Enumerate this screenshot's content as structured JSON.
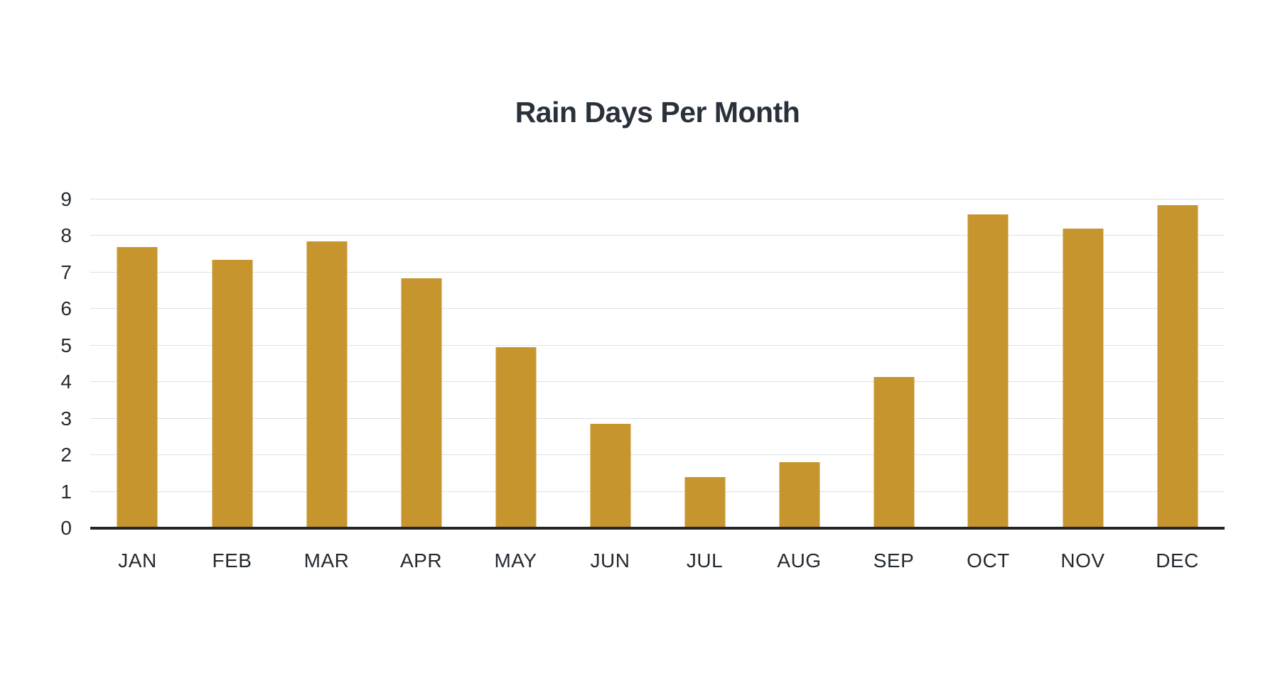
{
  "title": "Rain Days Per Month",
  "colors": {
    "background": "#ffffff",
    "bar": "#c6952e",
    "gridline": "#dce1e4",
    "baseline": "#1f262c",
    "title_text": "#2a313a",
    "axis_text": "#232a30"
  },
  "chart_data": {
    "type": "bar",
    "title": "Rain Days Per Month",
    "categories": [
      "JAN",
      "FEB",
      "MAR",
      "APR",
      "MAY",
      "JUN",
      "JUL",
      "AUG",
      "SEP",
      "OCT",
      "NOV",
      "DEC"
    ],
    "values": [
      7.7,
      7.35,
      7.85,
      6.85,
      4.95,
      2.85,
      1.4,
      1.8,
      4.15,
      8.6,
      8.2,
      8.85
    ],
    "xlabel": "",
    "ylabel": "",
    "ylim": [
      0,
      9
    ],
    "yticks": [
      0,
      1,
      2,
      3,
      4,
      5,
      6,
      7,
      8,
      9
    ],
    "grid": "horizontal-only",
    "legend": "none",
    "bar_color": "#c6952e"
  }
}
